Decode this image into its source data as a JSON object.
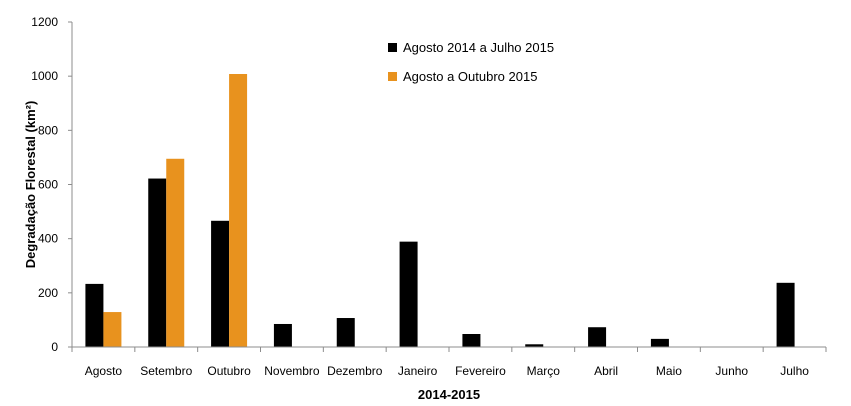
{
  "chart_data": {
    "type": "bar",
    "xlabel": "2014-2015",
    "ylabel": "Degradação Florestal (km²)",
    "ylim": [
      0,
      1200
    ],
    "yticks": [
      0,
      200,
      400,
      600,
      800,
      1000,
      1200
    ],
    "categories": [
      "Agosto",
      "Setembro",
      "Outubro",
      "Novembro",
      "Dezembro",
      "Janeiro",
      "Fevereiro",
      "Março",
      "Abril",
      "Maio",
      "Junho",
      "Julho"
    ],
    "series": [
      {
        "name": "Agosto 2014 a Julho 2015",
        "color": "#000000",
        "values": [
          233,
          622,
          466,
          85,
          107,
          389,
          48,
          10,
          73,
          30,
          0,
          237
        ]
      },
      {
        "name": "Agosto a Outubro 2015",
        "color": "#e8921e",
        "values": [
          129,
          695,
          1008,
          null,
          null,
          null,
          null,
          null,
          null,
          null,
          null,
          null
        ]
      }
    ],
    "legend_position": "top-center",
    "grid": false
  }
}
